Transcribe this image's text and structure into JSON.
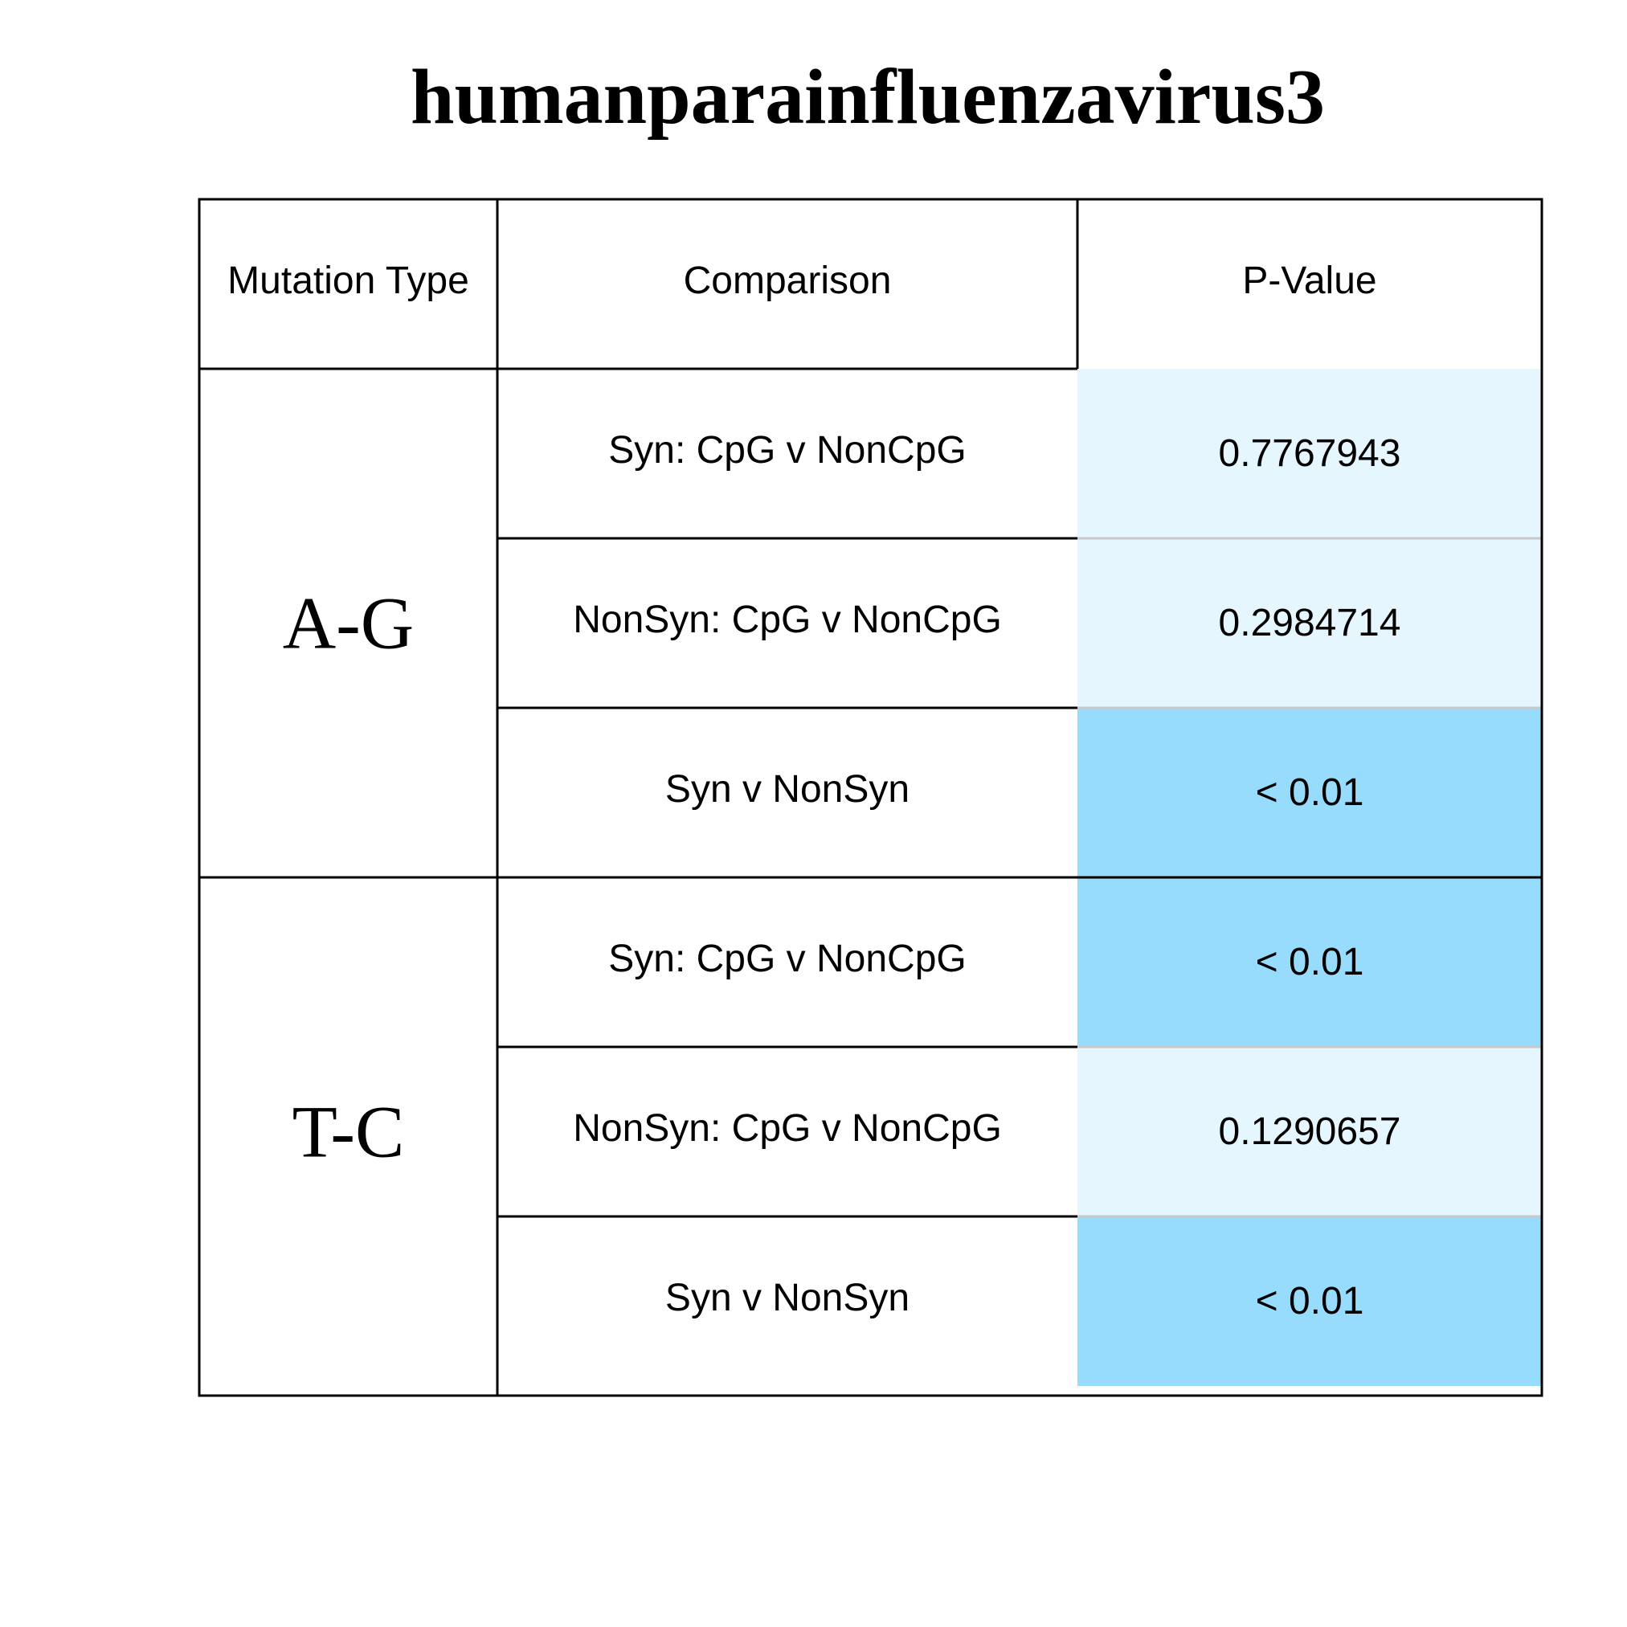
{
  "chart_data": {
    "type": "table",
    "title": "humanparainfluenzavirus3",
    "columns": [
      "Mutation Type",
      "Comparison",
      "P-Value"
    ],
    "groups": [
      {
        "mutation_type": "A-G",
        "rows": [
          {
            "comparison": "Syn: CpG v NonCpG",
            "p_value": "0.7767943",
            "significant": false
          },
          {
            "comparison": "NonSyn: CpG v NonCpG",
            "p_value": "0.2984714",
            "significant": false
          },
          {
            "comparison": "Syn v NonSyn",
            "p_value": "< 0.01",
            "significant": true
          }
        ]
      },
      {
        "mutation_type": "T-C",
        "rows": [
          {
            "comparison": "Syn: CpG v NonCpG",
            "p_value": "< 0.01",
            "significant": true
          },
          {
            "comparison": "NonSyn: CpG v NonCpG",
            "p_value": "0.1290657",
            "significant": false
          },
          {
            "comparison": "Syn v NonSyn",
            "p_value": "< 0.01",
            "significant": true
          }
        ]
      }
    ],
    "colors": {
      "not_significant": "#e5f6fe",
      "significant": "#97dcfd"
    }
  }
}
